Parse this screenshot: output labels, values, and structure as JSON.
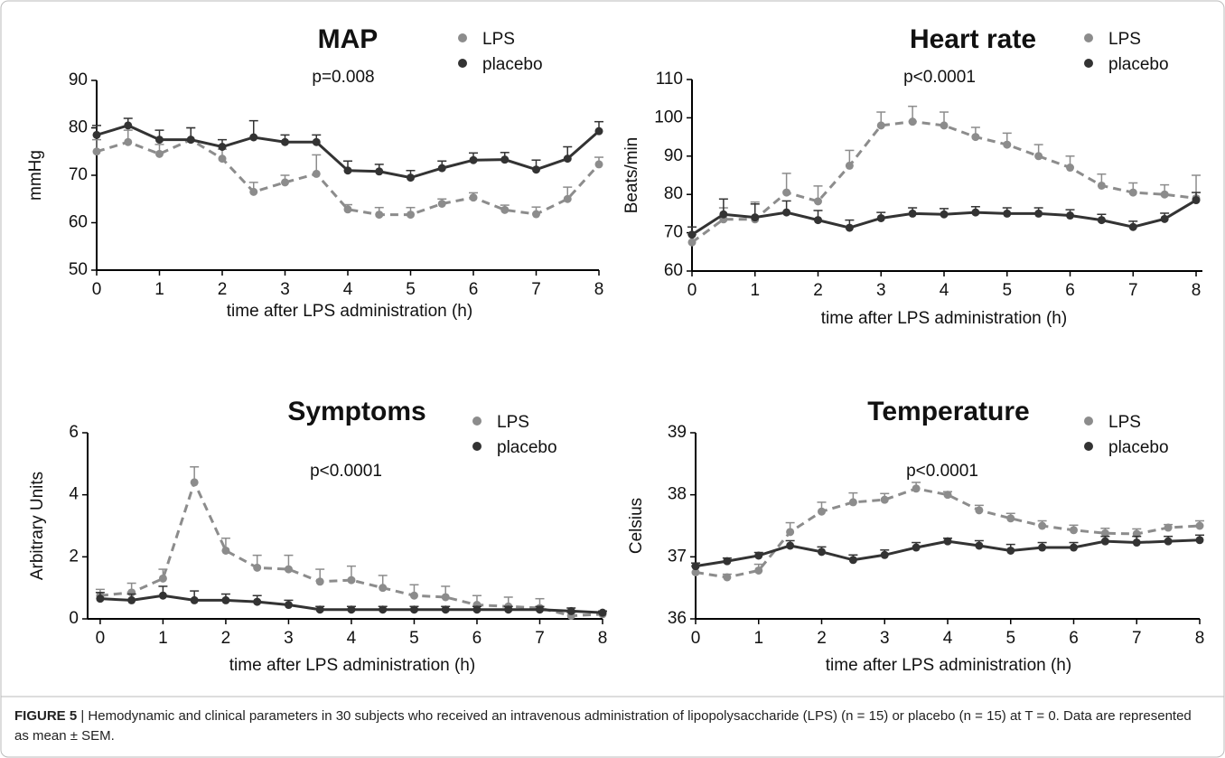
{
  "chart_data": [
    {
      "type": "line",
      "title": "MAP",
      "annotation": "p=0.008",
      "ylabel": "mmHg",
      "xlabel": "time after LPS administration (h)",
      "x": [
        0,
        0.5,
        1,
        1.5,
        2,
        2.5,
        3,
        3.5,
        4,
        4.5,
        5,
        5.5,
        6,
        6.5,
        7,
        7.5,
        8
      ],
      "series": [
        {
          "name": "LPS",
          "color": "#8c8c8c",
          "dashed": true,
          "values": [
            75,
            77,
            74.5,
            77.5,
            73.5,
            66.5,
            68.5,
            70.3,
            62.8,
            61.7,
            61.7,
            64,
            65.3,
            62.7,
            61.8,
            65,
            72.3
          ],
          "errors": [
            2.5,
            2.5,
            2,
            2.5,
            2,
            2,
            1.5,
            4,
            1,
            1.5,
            1.5,
            1,
            1,
            1,
            1.5,
            2.5,
            1.5
          ]
        },
        {
          "name": "placebo",
          "color": "#333333",
          "dashed": false,
          "values": [
            78.5,
            80.5,
            77.5,
            77.5,
            76,
            78,
            77,
            77,
            71,
            70.8,
            69.5,
            71.5,
            73.2,
            73.3,
            71.2,
            73.5,
            79.3
          ],
          "errors": [
            2,
            1.5,
            2,
            2.5,
            1.5,
            3.5,
            1.5,
            1.5,
            2,
            1.5,
            1.5,
            1.5,
            1.5,
            1.5,
            2,
            2.5,
            2
          ]
        }
      ],
      "xlim": [
        0,
        8
      ],
      "xticks": [
        0,
        1,
        2,
        3,
        4,
        5,
        6,
        7,
        8
      ],
      "ylim": [
        50,
        90
      ],
      "yticks": [
        50,
        60,
        70,
        80,
        90
      ]
    },
    {
      "type": "line",
      "title": "Heart rate",
      "annotation": "p<0.0001",
      "ylabel": "Beats/min",
      "xlabel": "time after LPS administration (h)",
      "x": [
        0,
        0.5,
        1,
        1.5,
        2,
        2.5,
        3,
        3.5,
        4,
        4.5,
        5,
        5.5,
        6,
        6.5,
        7,
        7.5,
        8
      ],
      "series": [
        {
          "name": "LPS",
          "color": "#8c8c8c",
          "dashed": true,
          "values": [
            67.5,
            73.5,
            73.5,
            80.5,
            78.2,
            87.5,
            98,
            99,
            98,
            95,
            93,
            90,
            87,
            82.3,
            80.5,
            80,
            79
          ],
          "errors": [
            2,
            3,
            4.5,
            5,
            4,
            4,
            3.5,
            4,
            3.5,
            2.5,
            3,
            3,
            3,
            3,
            2.5,
            2.5,
            6
          ]
        },
        {
          "name": "placebo",
          "color": "#333333",
          "dashed": false,
          "values": [
            69.5,
            74.8,
            74,
            75.3,
            73.3,
            71.3,
            73.8,
            75,
            74.8,
            75.3,
            75,
            75,
            74.5,
            73.3,
            71.5,
            73.6,
            78.5
          ],
          "errors": [
            2,
            4,
            3.5,
            3,
            2.5,
            2,
            1.5,
            1.5,
            1.5,
            1.5,
            1.5,
            1.5,
            1.5,
            1.5,
            1.5,
            1.5,
            2
          ]
        }
      ],
      "xlim": [
        0,
        8.1
      ],
      "xticks": [
        0,
        1,
        2,
        3,
        4,
        5,
        6,
        7,
        8
      ],
      "ylim": [
        60,
        110
      ],
      "yticks": [
        60,
        70,
        80,
        90,
        100,
        110
      ]
    },
    {
      "type": "line",
      "title": "Symptoms",
      "annotation": "p<0.0001",
      "ylabel": "Arbitrary Units",
      "xlabel": "time after LPS administration (h)",
      "x": [
        0,
        0.5,
        1,
        1.5,
        2,
        2.5,
        3,
        3.5,
        4,
        4.5,
        5,
        5.5,
        6,
        6.5,
        7,
        7.5,
        8
      ],
      "series": [
        {
          "name": "LPS",
          "color": "#8c8c8c",
          "dashed": true,
          "values": [
            0.75,
            0.85,
            1.3,
            4.4,
            2.2,
            1.65,
            1.6,
            1.2,
            1.25,
            1.0,
            0.75,
            0.7,
            0.45,
            0.4,
            0.35,
            0.1,
            0.15
          ],
          "errors": [
            0.2,
            0.3,
            0.3,
            0.5,
            0.4,
            0.4,
            0.45,
            0.4,
            0.45,
            0.4,
            0.35,
            0.35,
            0.3,
            0.3,
            0.3,
            0.1,
            0.1
          ]
        },
        {
          "name": "placebo",
          "color": "#333333",
          "dashed": false,
          "values": [
            0.65,
            0.6,
            0.75,
            0.6,
            0.6,
            0.55,
            0.45,
            0.3,
            0.3,
            0.3,
            0.3,
            0.3,
            0.3,
            0.3,
            0.3,
            0.25,
            0.2
          ],
          "errors": [
            0.2,
            0.2,
            0.3,
            0.3,
            0.2,
            0.2,
            0.15,
            0.1,
            0.1,
            0.1,
            0.1,
            0.1,
            0.1,
            0.1,
            0.1,
            0.1,
            0.05
          ]
        }
      ],
      "xlim": [
        -0.2,
        8
      ],
      "xticks": [
        0,
        1,
        2,
        3,
        4,
        5,
        6,
        7,
        8
      ],
      "ylim": [
        0,
        6
      ],
      "yticks": [
        0,
        2,
        4,
        6
      ]
    },
    {
      "type": "line",
      "title": "Temperature",
      "annotation": "p<0.0001",
      "ylabel": "Celsius",
      "xlabel": "time after LPS administration (h)",
      "x": [
        0,
        0.5,
        1,
        1.5,
        2,
        2.5,
        3,
        3.5,
        4,
        4.5,
        5,
        5.5,
        6,
        6.5,
        7,
        7.5,
        8
      ],
      "series": [
        {
          "name": "LPS",
          "color": "#8c8c8c",
          "dashed": true,
          "values": [
            36.75,
            36.67,
            36.78,
            37.4,
            37.73,
            37.88,
            37.92,
            38.1,
            38,
            37.75,
            37.62,
            37.5,
            37.43,
            37.38,
            37.37,
            37.47,
            37.5
          ],
          "errors": [
            0.1,
            0.05,
            0.1,
            0.15,
            0.15,
            0.15,
            0.1,
            0.1,
            0.05,
            0.08,
            0.08,
            0.08,
            0.08,
            0.08,
            0.08,
            0.05,
            0.08
          ]
        },
        {
          "name": "placebo",
          "color": "#333333",
          "dashed": false,
          "values": [
            36.85,
            36.93,
            37.02,
            37.18,
            37.08,
            36.95,
            37.03,
            37.15,
            37.25,
            37.18,
            37.1,
            37.15,
            37.15,
            37.25,
            37.23,
            37.25,
            37.27
          ],
          "errors": [
            0.05,
            0.05,
            0.05,
            0.08,
            0.08,
            0.08,
            0.08,
            0.08,
            0.05,
            0.08,
            0.1,
            0.08,
            0.08,
            0.08,
            0.1,
            0.08,
            0.08
          ]
        }
      ],
      "xlim": [
        0,
        8
      ],
      "xticks": [
        0,
        1,
        2,
        3,
        4,
        5,
        6,
        7,
        8
      ],
      "ylim": [
        36,
        39
      ],
      "yticks": [
        36,
        37,
        38,
        39
      ]
    }
  ],
  "caption": {
    "label": "FIGURE 5",
    "text": "| Hemodynamic and clinical parameters in 30 subjects who received an intravenous administration of lipopolysaccharide (LPS) (n = 15) or placebo (n = 15) at T = 0. Data are represented as mean ± SEM."
  }
}
